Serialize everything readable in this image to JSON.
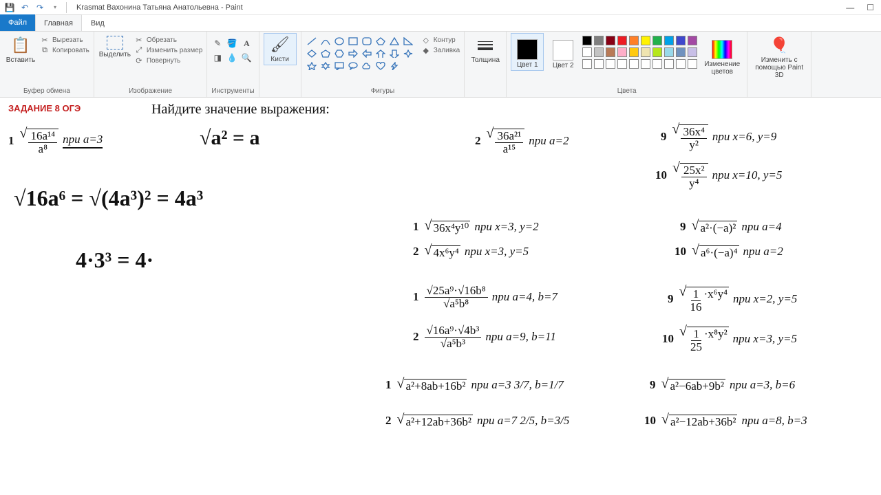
{
  "window": {
    "title": "Krasmat Вахонина Татьяна Анатольевна - Paint",
    "app": "Paint"
  },
  "qat": {
    "save": "💾",
    "undo": "↶",
    "redo": "↷"
  },
  "tabs": {
    "file": "Файл",
    "home": "Главная",
    "view": "Вид"
  },
  "ribbon": {
    "clipboard": {
      "label": "Буфер обмена",
      "paste": "Вставить",
      "cut": "Вырезать",
      "copy": "Копировать"
    },
    "image": {
      "label": "Изображение",
      "select": "Выделить",
      "crop": "Обрезать",
      "resize": "Изменить размер",
      "rotate": "Повернуть"
    },
    "tools": {
      "label": "Инструменты"
    },
    "brushes": {
      "label": "Кисти",
      "btn": "Кисти"
    },
    "shapes": {
      "label": "Фигуры",
      "outline": "Контур",
      "fill": "Заливка"
    },
    "size": {
      "label": "Толщина",
      "btn": "Толщина"
    },
    "colors": {
      "label": "Цвета",
      "color1": "Цвет 1",
      "color2": "Цвет 2",
      "edit": "Изменение цветов",
      "paint3d": "Изменить с помощью Paint 3D",
      "color1_val": "#000000",
      "color2_val": "#ffffff",
      "palette": [
        "#000000",
        "#7f7f7f",
        "#880015",
        "#ed1c24",
        "#ff7f27",
        "#fff200",
        "#22b14c",
        "#00a2e8",
        "#3f48cc",
        "#a349a4",
        "#ffffff",
        "#c3c3c3",
        "#b97a57",
        "#ffaec9",
        "#ffc90e",
        "#efe4b0",
        "#b5e61d",
        "#99d9ea",
        "#7092be",
        "#c8bfe7",
        "#ffffff",
        "#ffffff",
        "#ffffff",
        "#ffffff",
        "#ffffff",
        "#ffffff",
        "#ffffff",
        "#ffffff",
        "#ffffff",
        "#ffffff"
      ]
    }
  },
  "content": {
    "task_label": "ЗАДАНИЕ 8 ОГЭ",
    "instruction": "Найдите значение выражения:",
    "handwriting": {
      "h1": "√a² = a",
      "h2": "√16a⁶ = √(4a³)² = 4a³",
      "h3": "4·3³ = 4·",
      "p1_cond": "при a=3"
    },
    "problems": {
      "r1": [
        {
          "n": "1",
          "expr_num": "16a¹⁴",
          "expr_den": "a⁸",
          "cond": "при a=3"
        },
        {
          "n": "2",
          "expr_num": "36a²¹",
          "expr_den": "a¹⁵",
          "cond": "при a=2"
        },
        {
          "n": "9",
          "expr_num": "36x⁴",
          "expr_den": "y²",
          "cond": "при x=6, y=9"
        }
      ],
      "r1b": [
        {
          "n": "10",
          "expr_num": "25x²",
          "expr_den": "y⁴",
          "cond": "при x=10, y=5"
        }
      ],
      "r2": [
        {
          "n": "1",
          "expr": "36x⁴y¹⁰",
          "cond": "при x=3, y=2"
        },
        {
          "n": "9",
          "expr": "a²·(−a)²",
          "cond": "при a=4"
        }
      ],
      "r2b": [
        {
          "n": "2",
          "expr": "4x⁶y⁴",
          "cond": "при x=3, y=5"
        },
        {
          "n": "10",
          "expr": "a⁶·(−a)⁴",
          "cond": "при a=2"
        }
      ],
      "r3": [
        {
          "n": "1",
          "num": "√25a⁹·√16b⁸",
          "den": "√a⁵b⁸",
          "cond": "при a=4, b=7"
        },
        {
          "n": "9",
          "expr_num": "1",
          "expr_den": "16",
          "tail": "·x⁶y⁴",
          "cond": "при x=2, y=5"
        }
      ],
      "r3b": [
        {
          "n": "2",
          "num": "√16a⁹·√4b³",
          "den": "√a⁵b³",
          "cond": "при a=9, b=11"
        },
        {
          "n": "10",
          "expr_num": "1",
          "expr_den": "25",
          "tail": "·x⁸y²",
          "cond": "при x=3, y=5"
        }
      ],
      "r4": [
        {
          "n": "1",
          "expr": "a²+8ab+16b²",
          "cond": "при a=3 3/7, b=1/7"
        },
        {
          "n": "9",
          "expr": "a²−6ab+9b²",
          "cond": "при a=3, b=6"
        }
      ],
      "r4b": [
        {
          "n": "2",
          "expr": "a²+12ab+36b²",
          "cond": "при a=7 2/5, b=3/5"
        },
        {
          "n": "10",
          "expr": "a²−12ab+36b²",
          "cond": "при a=8, b=3"
        }
      ]
    }
  }
}
